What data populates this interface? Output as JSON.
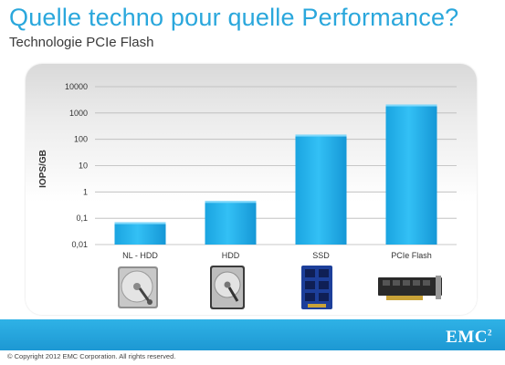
{
  "slide": {
    "title": "Quelle techno pour quelle Performance?",
    "subtitle": "Technologie PCIe Flash",
    "footer_logo": "EMC",
    "footer_logo_sup": "2",
    "copyright": "© Copyright 2012 EMC Corporation. All rights reserved.",
    "accent_color": "#2aa7dc",
    "bar_color": "#1fb0ec",
    "footer_color": "#1d98d3"
  },
  "chart_data": {
    "type": "bar",
    "title": "",
    "ylabel": "IOPS/GB",
    "xlabel": "",
    "y_scale": "log",
    "ylim": [
      0.01,
      10000
    ],
    "y_tick_labels": [
      "10000",
      "1000",
      "100",
      "10",
      "1",
      "0,1",
      "0,01"
    ],
    "y_tick_values": [
      10000,
      1000,
      100,
      10,
      1,
      0.1,
      0.01
    ],
    "categories": [
      "NL - HDD",
      "HDD",
      "SSD",
      "PCIe Flash"
    ],
    "values": [
      0.07,
      0.45,
      150,
      2100
    ],
    "grid": true
  },
  "icons": [
    "nl-hdd-drive-icon",
    "hdd-drive-icon",
    "ssd-board-icon",
    "pcie-flash-card-icon"
  ]
}
